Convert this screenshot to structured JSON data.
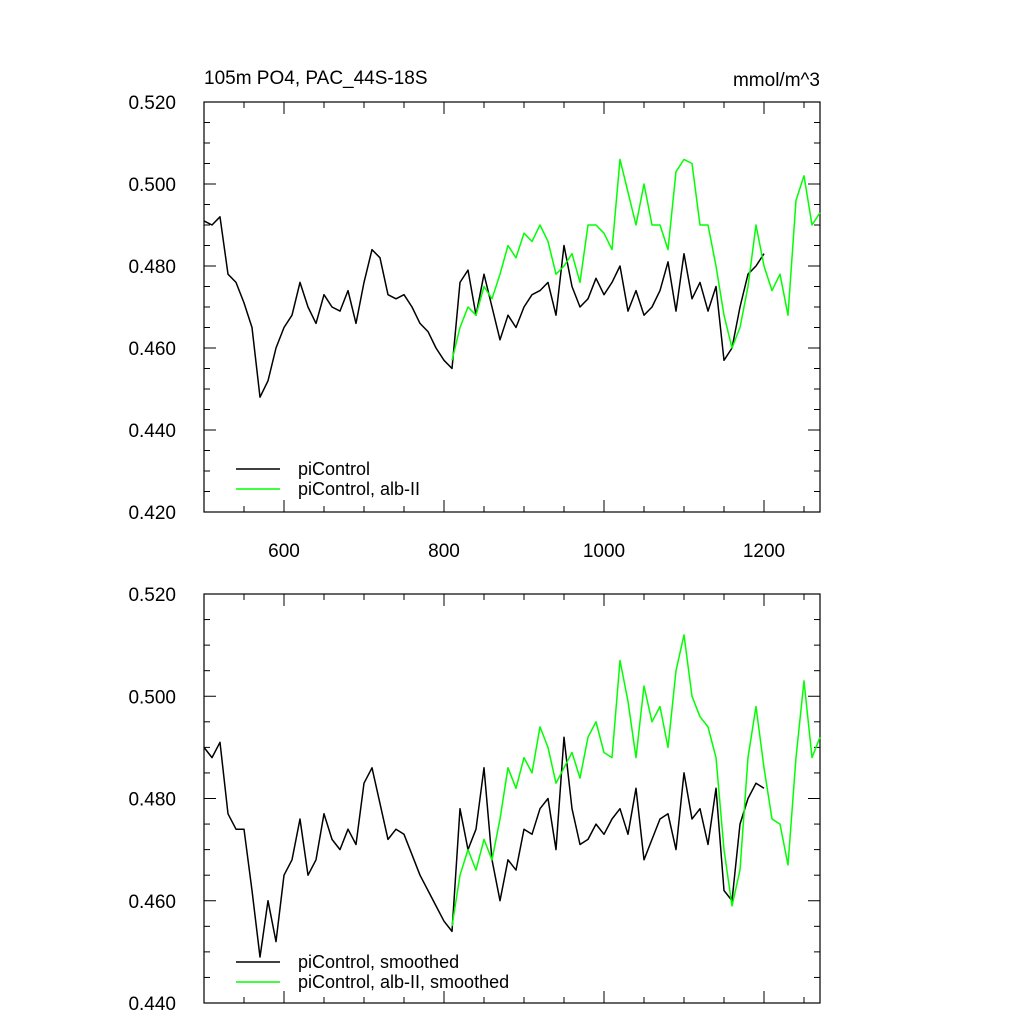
{
  "chart_data": [
    {
      "type": "line",
      "title": "105m PO4, PAC_44S-18S",
      "units": "mmol/m^3",
      "xlim": [
        500,
        1270
      ],
      "ylim": [
        0.42,
        0.52
      ],
      "x_ticks": [
        600,
        800,
        1000,
        1200
      ],
      "x_tick_labels": [
        "600",
        "800",
        "1000",
        "1200"
      ],
      "y_ticks": [
        0.42,
        0.44,
        0.46,
        0.48,
        0.5,
        0.52
      ],
      "y_tick_labels": [
        "0.420",
        "0.440",
        "0.460",
        "0.480",
        "0.500",
        "0.520"
      ],
      "legend_position": "bottom-left",
      "series": [
        {
          "name": "piControl",
          "color": "#000000",
          "x": [
            500,
            510,
            520,
            530,
            540,
            550,
            560,
            570,
            580,
            590,
            600,
            610,
            620,
            630,
            640,
            650,
            660,
            670,
            680,
            690,
            700,
            710,
            720,
            730,
            740,
            750,
            760,
            770,
            780,
            790,
            800,
            810,
            820,
            830,
            840,
            850,
            860,
            870,
            880,
            890,
            900,
            910,
            920,
            930,
            940,
            950,
            960,
            970,
            980,
            990,
            1000,
            1010,
            1020,
            1030,
            1040,
            1050,
            1060,
            1070,
            1080,
            1090,
            1100,
            1110,
            1120,
            1130,
            1140,
            1150,
            1160,
            1170,
            1180,
            1190,
            1200
          ],
          "values": [
            0.491,
            0.49,
            0.492,
            0.478,
            0.476,
            0.471,
            0.465,
            0.448,
            0.452,
            0.46,
            0.465,
            0.468,
            0.476,
            0.47,
            0.466,
            0.473,
            0.47,
            0.469,
            0.474,
            0.466,
            0.476,
            0.484,
            0.482,
            0.473,
            0.472,
            0.473,
            0.47,
            0.466,
            0.464,
            0.46,
            0.457,
            0.455,
            0.476,
            0.479,
            0.468,
            0.478,
            0.47,
            0.462,
            0.468,
            0.465,
            0.47,
            0.473,
            0.474,
            0.476,
            0.468,
            0.485,
            0.475,
            0.47,
            0.472,
            0.477,
            0.473,
            0.476,
            0.48,
            0.469,
            0.474,
            0.468,
            0.47,
            0.474,
            0.481,
            0.469,
            0.483,
            0.472,
            0.476,
            0.469,
            0.475,
            0.457,
            0.46,
            0.47,
            0.478,
            0.48,
            0.483
          ]
        },
        {
          "name": "piControl, alb-II",
          "color": "#00ff00",
          "x": [
            810,
            820,
            830,
            840,
            850,
            860,
            870,
            880,
            890,
            900,
            910,
            920,
            930,
            940,
            950,
            960,
            970,
            980,
            990,
            1000,
            1010,
            1020,
            1030,
            1040,
            1050,
            1060,
            1070,
            1080,
            1090,
            1100,
            1110,
            1120,
            1130,
            1140,
            1150,
            1160,
            1170,
            1180,
            1190,
            1200,
            1210,
            1220,
            1230,
            1240,
            1250,
            1260,
            1270
          ],
          "values": [
            0.457,
            0.465,
            0.47,
            0.468,
            0.475,
            0.472,
            0.478,
            0.485,
            0.482,
            0.488,
            0.486,
            0.49,
            0.486,
            0.478,
            0.48,
            0.483,
            0.476,
            0.49,
            0.49,
            0.488,
            0.484,
            0.506,
            0.498,
            0.49,
            0.5,
            0.49,
            0.49,
            0.484,
            0.503,
            0.506,
            0.505,
            0.49,
            0.49,
            0.48,
            0.468,
            0.46,
            0.465,
            0.475,
            0.49,
            0.48,
            0.474,
            0.478,
            0.468,
            0.496,
            0.502,
            0.49,
            0.493
          ]
        }
      ]
    },
    {
      "type": "line",
      "xlim": [
        500,
        1270
      ],
      "ylim": [
        0.44,
        0.52
      ],
      "x_ticks": [
        600,
        800,
        1000,
        1200
      ],
      "y_ticks": [
        0.44,
        0.46,
        0.48,
        0.5,
        0.52
      ],
      "y_tick_labels": [
        "0.440",
        "0.460",
        "0.480",
        "0.500",
        "0.520"
      ],
      "legend_position": "bottom-left",
      "series": [
        {
          "name": "piControl, smoothed",
          "color": "#000000",
          "x": [
            500,
            510,
            520,
            530,
            540,
            550,
            560,
            570,
            580,
            590,
            600,
            610,
            620,
            630,
            640,
            650,
            660,
            670,
            680,
            690,
            700,
            710,
            720,
            730,
            740,
            750,
            760,
            770,
            780,
            790,
            800,
            810,
            820,
            830,
            840,
            850,
            860,
            870,
            880,
            890,
            900,
            910,
            920,
            930,
            940,
            950,
            960,
            970,
            980,
            990,
            1000,
            1010,
            1020,
            1030,
            1040,
            1050,
            1060,
            1070,
            1080,
            1090,
            1100,
            1110,
            1120,
            1130,
            1140,
            1150,
            1160,
            1170,
            1180,
            1190,
            1200
          ],
          "values": [
            0.49,
            0.488,
            0.491,
            0.477,
            0.474,
            0.474,
            0.462,
            0.449,
            0.46,
            0.452,
            0.465,
            0.468,
            0.476,
            0.465,
            0.468,
            0.477,
            0.472,
            0.47,
            0.474,
            0.471,
            0.483,
            0.486,
            0.479,
            0.472,
            0.474,
            0.473,
            0.469,
            0.465,
            0.462,
            0.459,
            0.456,
            0.454,
            0.478,
            0.47,
            0.474,
            0.486,
            0.468,
            0.46,
            0.468,
            0.466,
            0.474,
            0.473,
            0.478,
            0.48,
            0.47,
            0.492,
            0.478,
            0.471,
            0.472,
            0.475,
            0.473,
            0.476,
            0.478,
            0.473,
            0.482,
            0.468,
            0.472,
            0.476,
            0.477,
            0.47,
            0.485,
            0.476,
            0.478,
            0.471,
            0.482,
            0.462,
            0.46,
            0.475,
            0.48,
            0.483,
            0.482
          ]
        },
        {
          "name": "piControl, alb-II, smoothed",
          "color": "#00ff00",
          "x": [
            810,
            820,
            830,
            840,
            850,
            860,
            870,
            880,
            890,
            900,
            910,
            920,
            930,
            940,
            950,
            960,
            970,
            980,
            990,
            1000,
            1010,
            1020,
            1030,
            1040,
            1050,
            1060,
            1070,
            1080,
            1090,
            1100,
            1110,
            1120,
            1130,
            1140,
            1150,
            1160,
            1170,
            1180,
            1190,
            1200,
            1210,
            1220,
            1230,
            1240,
            1250,
            1260,
            1270
          ],
          "values": [
            0.455,
            0.465,
            0.47,
            0.466,
            0.472,
            0.468,
            0.476,
            0.486,
            0.482,
            0.488,
            0.485,
            0.494,
            0.49,
            0.483,
            0.486,
            0.489,
            0.484,
            0.492,
            0.495,
            0.489,
            0.488,
            0.507,
            0.499,
            0.488,
            0.502,
            0.495,
            0.498,
            0.49,
            0.505,
            0.512,
            0.5,
            0.496,
            0.494,
            0.488,
            0.47,
            0.459,
            0.466,
            0.488,
            0.498,
            0.486,
            0.476,
            0.475,
            0.467,
            0.488,
            0.503,
            0.488,
            0.492
          ]
        }
      ]
    }
  ]
}
